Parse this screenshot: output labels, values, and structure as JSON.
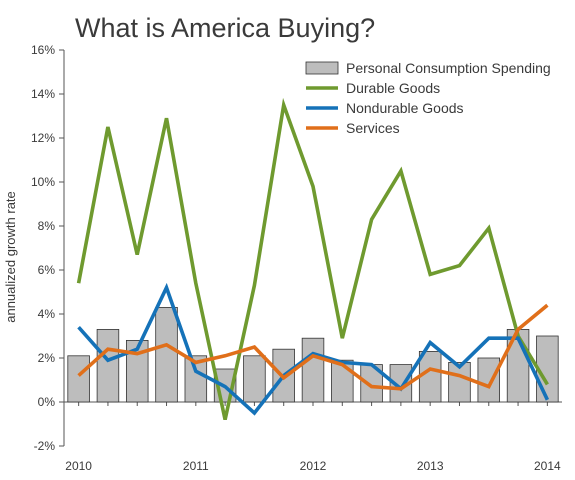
{
  "chart_data": {
    "type": "bar+line",
    "title": "What is America Buying?",
    "ylabel": "annualized growth rate",
    "xlabel": "",
    "ylim": [
      -2,
      16
    ],
    "yticks": [
      -2,
      0,
      2,
      4,
      6,
      8,
      10,
      12,
      14,
      16
    ],
    "ytick_labels": [
      "-2%",
      "0%",
      "2%",
      "4%",
      "6%",
      "8%",
      "10%",
      "12%",
      "14%",
      "16%"
    ],
    "x_tick_labels": [
      {
        "label": "2010",
        "x": 2010.0
      },
      {
        "label": "2011",
        "x": 2011.0
      },
      {
        "label": "2012",
        "x": 2012.0
      },
      {
        "label": "2013",
        "x": 2013.0
      },
      {
        "label": "2014",
        "x": 2014.0
      }
    ],
    "xlim": [
      2009.875,
      2014.125
    ],
    "x": [
      2010.0,
      2010.25,
      2010.5,
      2010.75,
      2011.0,
      2011.25,
      2011.5,
      2011.75,
      2012.0,
      2012.25,
      2012.5,
      2012.75,
      2013.0,
      2013.25,
      2013.5,
      2013.75,
      2014.0
    ],
    "legend_position": "top-right",
    "series": [
      {
        "name": "Personal Consumption Spending",
        "kind": "bar",
        "color": "#bdbdbd",
        "values": [
          2.1,
          3.3,
          2.8,
          4.3,
          2.1,
          1.5,
          2.1,
          2.4,
          2.9,
          1.9,
          1.7,
          1.7,
          2.3,
          1.8,
          2.0,
          3.3,
          3.0
        ]
      },
      {
        "name": "Durable Goods",
        "kind": "line",
        "color": "#6f9a2f",
        "values": [
          5.4,
          12.5,
          6.7,
          12.9,
          5.4,
          -0.8,
          5.3,
          13.5,
          9.8,
          2.9,
          8.3,
          10.5,
          5.8,
          6.2,
          7.9,
          3.0,
          0.8
        ]
      },
      {
        "name": "Nondurable Goods",
        "kind": "line",
        "color": "#1572b8",
        "values": [
          3.4,
          1.9,
          2.4,
          5.2,
          1.4,
          0.7,
          -0.5,
          1.2,
          2.2,
          1.8,
          1.7,
          0.6,
          2.7,
          1.6,
          2.9,
          2.9,
          0.1
        ]
      },
      {
        "name": "Services",
        "kind": "line",
        "color": "#e06f1a",
        "values": [
          1.2,
          2.4,
          2.2,
          2.6,
          1.8,
          2.1,
          2.5,
          1.1,
          2.1,
          1.7,
          0.7,
          0.6,
          1.5,
          1.2,
          0.7,
          3.3,
          4.4
        ]
      }
    ]
  }
}
